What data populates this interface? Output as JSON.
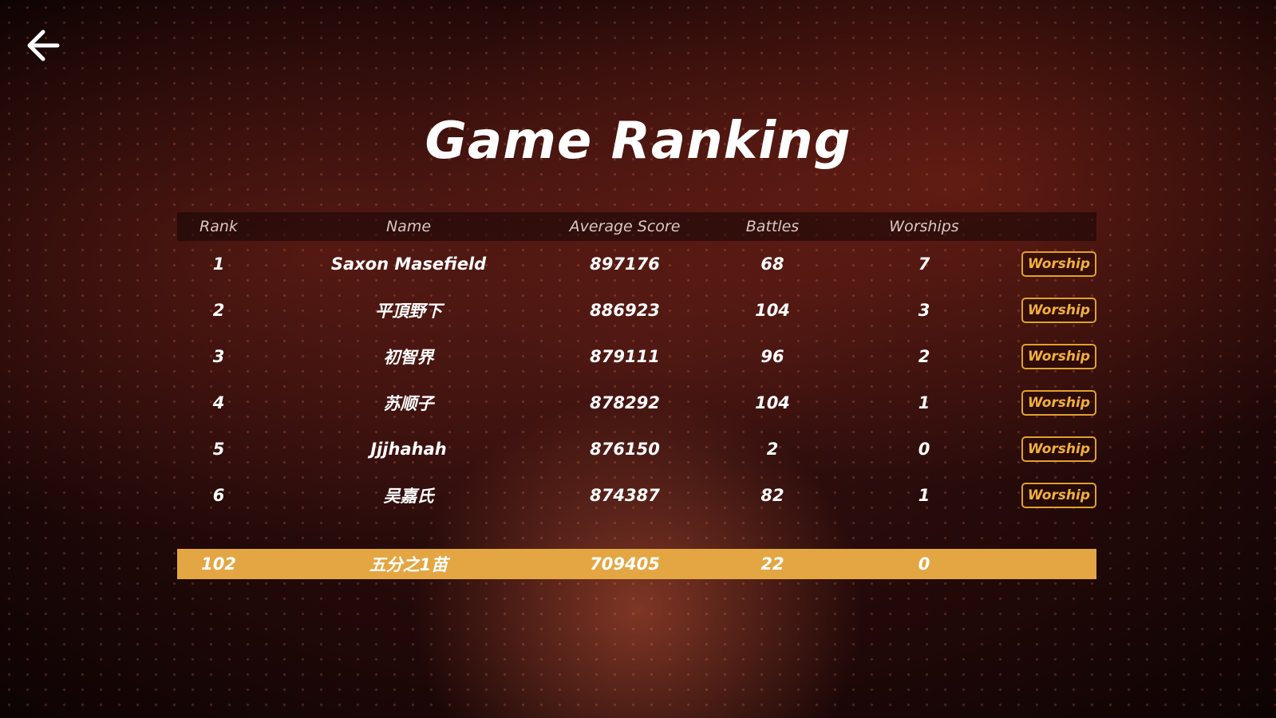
{
  "header": {
    "title": "Game Ranking"
  },
  "table": {
    "columns": [
      "Rank",
      "Name",
      "Average Score",
      "Battles",
      "Worships"
    ],
    "rows": [
      {
        "rank": 1,
        "name": "Saxon Masefield",
        "score": 897176,
        "battles": 68,
        "worships": 7,
        "action": "Worship"
      },
      {
        "rank": 2,
        "name": "平頂野下",
        "score": 886923,
        "battles": 104,
        "worships": 3,
        "action": "Worship"
      },
      {
        "rank": 3,
        "name": "初智界",
        "score": 879111,
        "battles": 96,
        "worships": 2,
        "action": "Worship"
      },
      {
        "rank": 4,
        "name": "苏顺子",
        "score": 878292,
        "battles": 104,
        "worships": 1,
        "action": "Worship"
      },
      {
        "rank": 5,
        "name": "Jjjhahah",
        "score": 876150,
        "battles": 2,
        "worships": 0,
        "action": "Worship"
      },
      {
        "rank": 6,
        "name": "吴嘉氏",
        "score": 874387,
        "battles": 82,
        "worships": 1,
        "action": "Worship"
      }
    ],
    "self": {
      "rank": 102,
      "name": "五分之1苗",
      "score": 709405,
      "battles": 22,
      "worships": 0
    }
  }
}
